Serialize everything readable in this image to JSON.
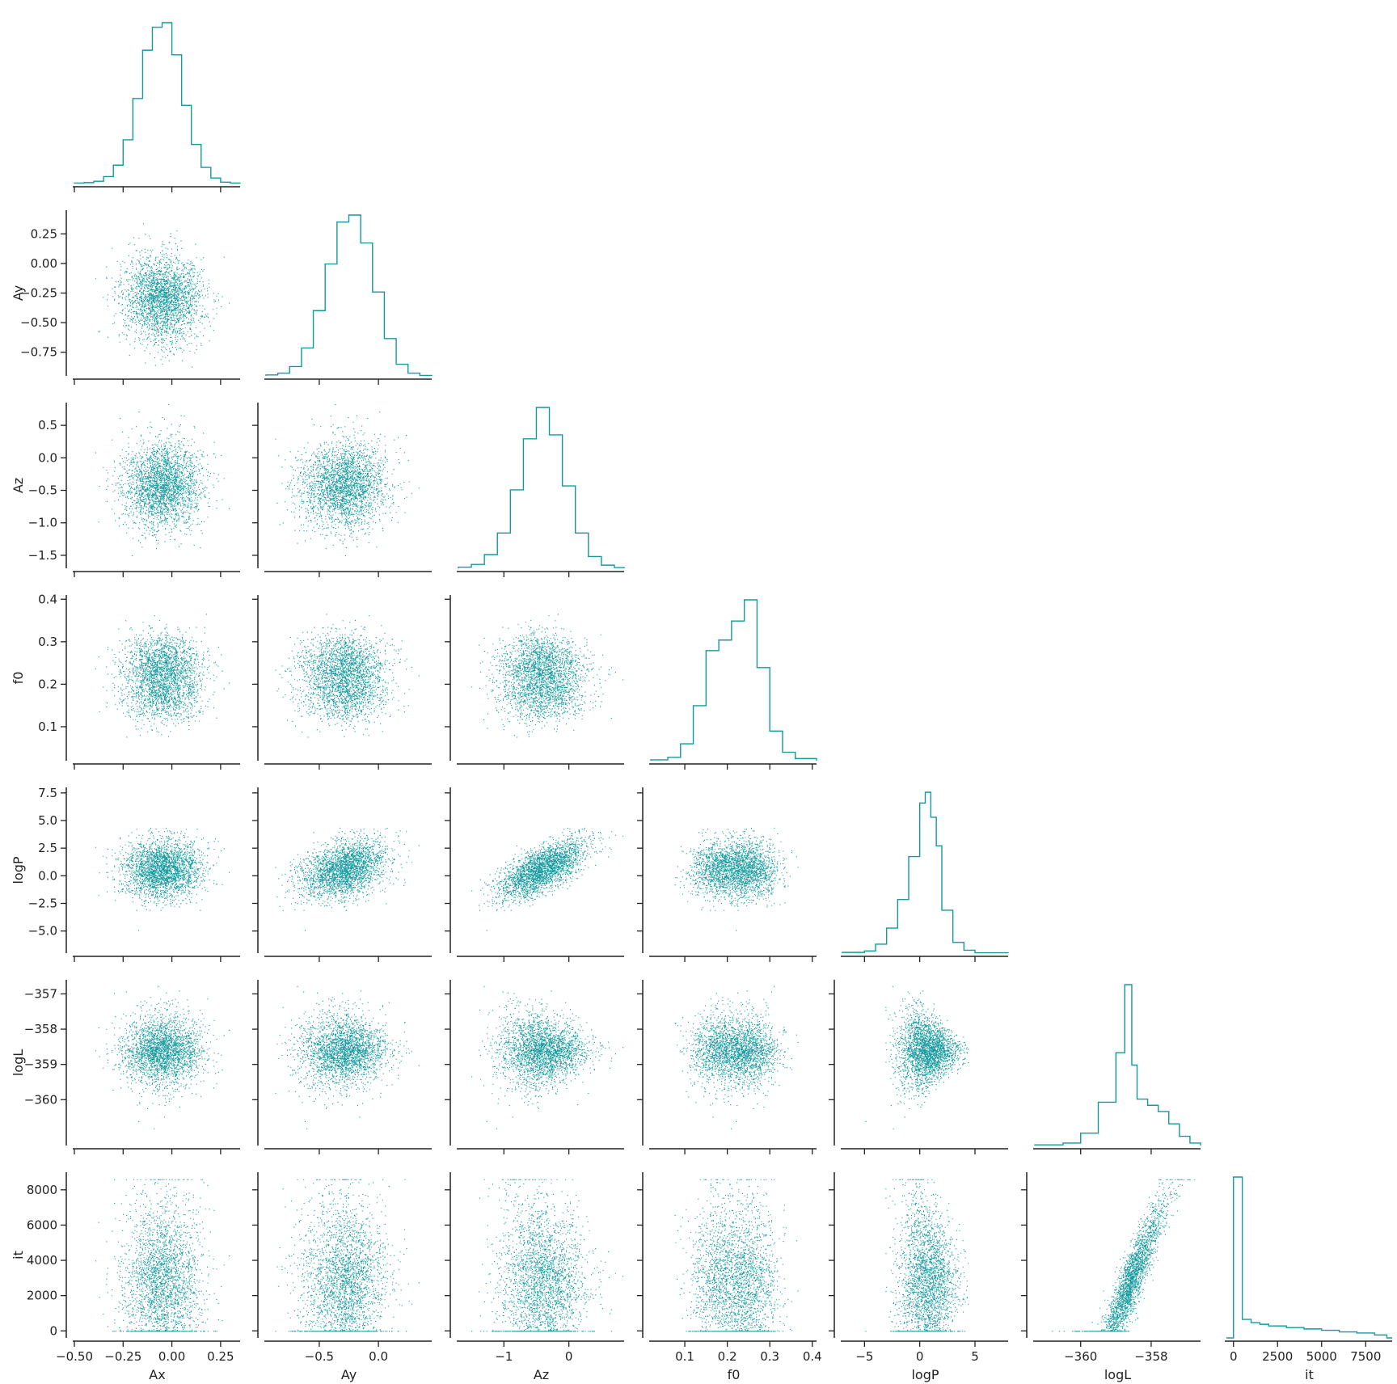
{
  "colors": {
    "accent": "#14999f",
    "axis": "#222222",
    "background": "#ffffff"
  },
  "chart_data": {
    "type": "scatter",
    "layout": "corner",
    "variables": [
      {
        "name": "Ax",
        "label": "Ax",
        "range": [
          -0.5,
          0.35
        ],
        "ticks": [
          -0.5,
          -0.25,
          0,
          0.25
        ],
        "tick_labels": [
          "−0.50",
          "−0.25",
          "0.00",
          "0.25"
        ],
        "mean": -0.05,
        "sd": 0.1
      },
      {
        "name": "Ay",
        "label": "Ay",
        "range": [
          -0.95,
          0.45
        ],
        "ticks": [
          -0.5,
          0
        ],
        "tick_labels": [
          "−0.5",
          "0.0"
        ],
        "row_ticks": [
          0.25,
          0,
          -0.25,
          -0.5,
          -0.75
        ],
        "row_tick_labels": [
          "0.25",
          "0.00",
          "−0.25",
          "−0.50",
          "−0.75"
        ],
        "mean": -0.29,
        "sd": 0.18
      },
      {
        "name": "Az",
        "label": "Az",
        "range": [
          -1.7,
          0.85
        ],
        "ticks": [
          -1,
          0
        ],
        "tick_labels": [
          "−1",
          "0"
        ],
        "row_ticks": [
          0.5,
          0,
          -0.5,
          -1,
          -1.5
        ],
        "row_tick_labels": [
          "0.5",
          "0.0",
          "−0.5",
          "−1.0",
          "−1.5"
        ],
        "mean": -0.42,
        "sd": 0.33
      },
      {
        "name": "f0",
        "label": "f0",
        "range": [
          0.02,
          0.41
        ],
        "ticks": [
          0.1,
          0.2,
          0.3,
          0.4
        ],
        "tick_labels": [
          "0.1",
          "0.2",
          "0.3",
          "0.4"
        ],
        "row_ticks": [
          0.4,
          0.3,
          0.2,
          0.1
        ],
        "row_tick_labels": [
          "0.4",
          "0.3",
          "0.2",
          "0.1"
        ],
        "mean": 0.22,
        "sd": 0.05
      },
      {
        "name": "logP",
        "label": "logP",
        "range": [
          -7,
          8
        ],
        "ticks": [
          -5,
          0,
          5
        ],
        "tick_labels": [
          "−5",
          "0",
          "5"
        ],
        "row_ticks": [
          7.5,
          5,
          2.5,
          0,
          -2.5,
          -5
        ],
        "row_tick_labels": [
          "7.5",
          "5.0",
          "2.5",
          "0.0",
          "−2.5",
          "−5.0"
        ],
        "mean": 0.6,
        "sd": 1.5
      },
      {
        "name": "logL",
        "label": "logL",
        "range": [
          -361.3,
          -356.6
        ],
        "ticks": [
          -360,
          -358
        ],
        "tick_labels": [
          "−360",
          "−358"
        ],
        "row_ticks": [
          -357,
          -358,
          -359,
          -360
        ],
        "row_tick_labels": [
          "−357",
          "−358",
          "−359",
          "−360"
        ],
        "mean": -358.6,
        "sd": 0.5
      },
      {
        "name": "it",
        "label": "it",
        "range": [
          -400,
          9000
        ],
        "ticks": [
          0,
          2500,
          5000,
          7500
        ],
        "tick_labels": [
          "0",
          "2500",
          "5000",
          "7500"
        ],
        "row_ticks": [
          8000,
          6000,
          4000,
          2000,
          0
        ],
        "row_tick_labels": [
          "8000",
          "6000",
          "4000",
          "2000",
          "0"
        ],
        "mean": 1500,
        "sd": 2000
      }
    ],
    "histograms": [
      {
        "name": "Ax",
        "bin_edges": [
          -0.5,
          -0.45,
          -0.4,
          -0.35,
          -0.3,
          -0.25,
          -0.2,
          -0.15,
          -0.1,
          -0.05,
          0.0,
          0.05,
          0.1,
          0.15,
          0.2,
          0.25,
          0.3,
          0.35
        ],
        "counts": [
          1,
          2,
          5,
          15,
          40,
          95,
          185,
          290,
          340,
          350,
          280,
          170,
          85,
          35,
          12,
          3,
          1
        ]
      },
      {
        "name": "Ay",
        "bin_edges": [
          -0.95,
          -0.85,
          -0.75,
          -0.65,
          -0.55,
          -0.45,
          -0.35,
          -0.25,
          -0.15,
          -0.05,
          0.05,
          0.15,
          0.25,
          0.35,
          0.45
        ],
        "counts": [
          2,
          6,
          20,
          60,
          140,
          240,
          330,
          345,
          285,
          180,
          80,
          25,
          6,
          1
        ]
      },
      {
        "name": "Az",
        "bin_edges": [
          -1.7,
          -1.5,
          -1.3,
          -1.1,
          -0.9,
          -0.7,
          -0.5,
          -0.3,
          -0.1,
          0.1,
          0.3,
          0.5,
          0.7,
          0.85
        ],
        "counts": [
          3,
          10,
          35,
          90,
          200,
          330,
          410,
          340,
          210,
          90,
          30,
          8,
          2
        ]
      },
      {
        "name": "f0",
        "bin_edges": [
          0.02,
          0.06,
          0.09,
          0.12,
          0.15,
          0.18,
          0.21,
          0.24,
          0.27,
          0.3,
          0.33,
          0.36,
          0.41
        ],
        "counts": [
          2,
          8,
          40,
          130,
          260,
          285,
          330,
          380,
          220,
          70,
          20,
          5
        ]
      },
      {
        "name": "logP",
        "bin_edges": [
          -7,
          -5,
          -4,
          -3,
          -2,
          -1,
          0,
          0.5,
          1,
          1.5,
          2,
          3,
          4,
          5,
          8
        ],
        "counts": [
          2,
          6,
          25,
          70,
          150,
          270,
          420,
          450,
          380,
          300,
          120,
          30,
          8,
          1
        ]
      },
      {
        "name": "logL",
        "bin_edges": [
          -361.3,
          -360.5,
          -360,
          -359.5,
          -359,
          -358.75,
          -358.55,
          -358.4,
          -358.1,
          -357.8,
          -357.5,
          -357.2,
          -356.9,
          -356.6
        ],
        "counts": [
          2,
          8,
          40,
          140,
          300,
          520,
          260,
          150,
          130,
          110,
          70,
          30,
          8
        ]
      },
      {
        "name": "it",
        "bin_edges": [
          -400,
          0,
          500,
          1000,
          1500,
          2000,
          3000,
          4000,
          5000,
          6000,
          7000,
          8000,
          8700,
          9000
        ],
        "counts": [
          0,
          2950,
          340,
          280,
          250,
          220,
          190,
          165,
          140,
          110,
          90,
          55,
          0
        ]
      }
    ],
    "scatter_points_per_panel": 2600
  }
}
